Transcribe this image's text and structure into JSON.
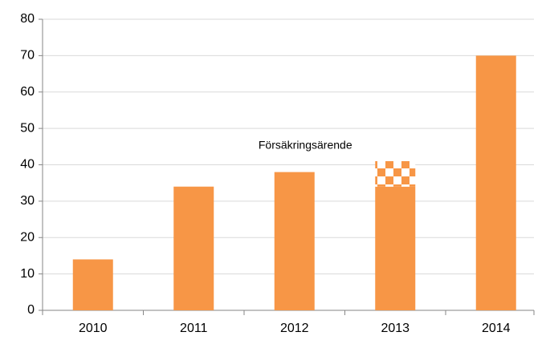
{
  "chart_data": {
    "type": "bar",
    "categories": [
      "2010",
      "2011",
      "2012",
      "2013",
      "2014"
    ],
    "series": [
      {
        "color": "#f79646",
        "values": [
          14,
          34,
          38,
          34,
          70
        ]
      },
      {
        "name": "Försäkringsärende",
        "color": "#f79646",
        "pattern": "checkered",
        "values": [
          null,
          null,
          null,
          7,
          null
        ]
      }
    ],
    "stacked": true,
    "ylim": [
      0,
      80
    ],
    "yticks": [
      0,
      10,
      20,
      30,
      40,
      50,
      60,
      70,
      80
    ],
    "grid": true
  }
}
